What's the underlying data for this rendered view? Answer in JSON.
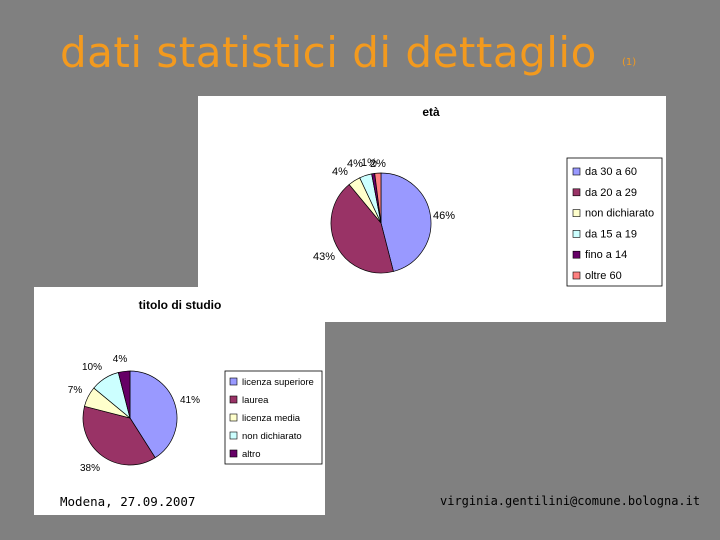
{
  "slide": {
    "title": "dati statistici di dettaglio",
    "title_suffix": "(1)",
    "footer_left": "Modena, 27.09.2007",
    "footer_right": "virginia.gentilini@comune.bologna.it"
  },
  "chart_data": [
    {
      "type": "pie",
      "title": "età",
      "categories": [
        "da 30 a 60",
        "da 20 a 29",
        "non dichiarato",
        "da 15 a 19",
        "fino a 14",
        "oltre 60"
      ],
      "values": [
        46,
        43,
        4,
        4,
        1,
        2
      ],
      "data_labels": [
        "46%",
        "43%",
        "4%",
        "4%",
        "1%",
        "2%"
      ],
      "colors": [
        "#9999FF",
        "#993366",
        "#FFFFCC",
        "#CCFFFF",
        "#660066",
        "#FF8080"
      ],
      "legend_position": "right"
    },
    {
      "type": "pie",
      "title": "titolo di studio",
      "categories": [
        "licenza superiore",
        "laurea",
        "licenza media",
        "non dichiarato",
        "altro"
      ],
      "values": [
        41,
        38,
        7,
        10,
        4
      ],
      "data_labels": [
        "41%",
        "38%",
        "7%",
        "10%",
        "4%"
      ],
      "colors": [
        "#9999FF",
        "#993366",
        "#FFFFCC",
        "#CCFFFF",
        "#660066"
      ],
      "legend_position": "right"
    }
  ]
}
